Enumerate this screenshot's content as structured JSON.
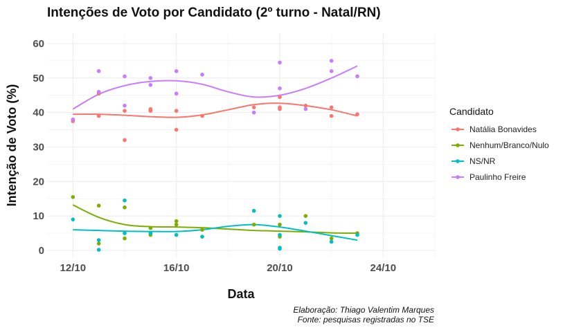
{
  "chart_data": {
    "type": "scatter",
    "title": "Intenções de Voto por Candidato (2º turno - Natal/RN)",
    "xlabel": "Data",
    "ylabel": "Intenção de Voto (%)",
    "x_ticks": [
      "12/10",
      "16/10",
      "20/10",
      "24/10"
    ],
    "y_ticks": [
      "0",
      "10",
      "20",
      "30",
      "40",
      "50",
      "60"
    ],
    "xlim": [
      "2020-10-11",
      "2020-10-26"
    ],
    "ylim": [
      -2,
      63
    ],
    "grid": true,
    "legend_title": "Candidato",
    "legend_position": "right",
    "caption": [
      "Elaboração: Thiago Valentim Marques",
      "Fonte: pesquisas registradas no TSE"
    ],
    "series": [
      {
        "name": "Natália Bonavides",
        "color": "#F8766D",
        "points": [
          [
            "2020-10-12",
            37.5
          ],
          [
            "2020-10-13",
            45.5
          ],
          [
            "2020-10-13",
            39.0
          ],
          [
            "2020-10-14",
            40.5
          ],
          [
            "2020-10-14",
            32.0
          ],
          [
            "2020-10-15",
            41.0
          ],
          [
            "2020-10-15",
            40.5
          ],
          [
            "2020-10-16",
            40.5
          ],
          [
            "2020-10-16",
            35.0
          ],
          [
            "2020-10-17",
            39.0
          ],
          [
            "2020-10-19",
            41.5
          ],
          [
            "2020-10-20",
            41.0
          ],
          [
            "2020-10-20",
            44.5
          ],
          [
            "2020-10-20",
            41.5
          ],
          [
            "2020-10-21",
            42.0
          ],
          [
            "2020-10-22",
            41.5
          ],
          [
            "2020-10-22",
            39.0
          ],
          [
            "2020-10-23",
            39.5
          ]
        ],
        "smooth": [
          [
            "2020-10-12",
            39.5
          ],
          [
            "2020-10-13",
            39.5
          ],
          [
            "2020-10-14",
            39.2
          ],
          [
            "2020-10-15",
            38.8
          ],
          [
            "2020-10-16",
            38.6
          ],
          [
            "2020-10-17",
            39.3
          ],
          [
            "2020-10-18",
            40.8
          ],
          [
            "2020-10-19",
            42.3
          ],
          [
            "2020-10-20",
            42.7
          ],
          [
            "2020-10-21",
            42.0
          ],
          [
            "2020-10-22",
            40.8
          ],
          [
            "2020-10-23",
            39.0
          ]
        ]
      },
      {
        "name": "Nenhum/Branco/Nulo",
        "color": "#7CAE00",
        "points": [
          [
            "2020-10-12",
            15.5
          ],
          [
            "2020-10-13",
            13.0
          ],
          [
            "2020-10-13",
            2.0
          ],
          [
            "2020-10-14",
            12.5
          ],
          [
            "2020-10-14",
            3.5
          ],
          [
            "2020-10-15",
            6.5
          ],
          [
            "2020-10-15",
            4.5
          ],
          [
            "2020-10-16",
            8.5
          ],
          [
            "2020-10-16",
            7.5
          ],
          [
            "2020-10-17",
            6.0
          ],
          [
            "2020-10-19",
            7.5
          ],
          [
            "2020-10-20",
            7.5
          ],
          [
            "2020-10-20",
            4.0
          ],
          [
            "2020-10-21",
            10.0
          ],
          [
            "2020-10-22",
            3.5
          ],
          [
            "2020-10-23",
            5.0
          ]
        ],
        "smooth": [
          [
            "2020-10-12",
            13.2
          ],
          [
            "2020-10-13",
            9.6
          ],
          [
            "2020-10-14",
            7.5
          ],
          [
            "2020-10-15",
            6.9
          ],
          [
            "2020-10-16",
            6.8
          ],
          [
            "2020-10-17",
            6.6
          ],
          [
            "2020-10-18",
            6.2
          ],
          [
            "2020-10-19",
            5.8
          ],
          [
            "2020-10-20",
            5.6
          ],
          [
            "2020-10-21",
            5.4
          ],
          [
            "2020-10-22",
            5.1
          ],
          [
            "2020-10-23",
            5.0
          ]
        ]
      },
      {
        "name": "NS/NR",
        "color": "#00BFC4",
        "points": [
          [
            "2020-10-12",
            9.0
          ],
          [
            "2020-10-13",
            3.0
          ],
          [
            "2020-10-13",
            0.2
          ],
          [
            "2020-10-14",
            14.5
          ],
          [
            "2020-10-14",
            5.0
          ],
          [
            "2020-10-15",
            5.0
          ],
          [
            "2020-10-16",
            4.5
          ],
          [
            "2020-10-17",
            4.0
          ],
          [
            "2020-10-19",
            11.5
          ],
          [
            "2020-10-20",
            10.0
          ],
          [
            "2020-10-20",
            4.5
          ],
          [
            "2020-10-20",
            0.8
          ],
          [
            "2020-10-20",
            0.5
          ],
          [
            "2020-10-21",
            8.0
          ],
          [
            "2020-10-22",
            2.5
          ],
          [
            "2020-10-23",
            4.5
          ]
        ],
        "smooth": [
          [
            "2020-10-12",
            6.0
          ],
          [
            "2020-10-13",
            5.8
          ],
          [
            "2020-10-14",
            5.6
          ],
          [
            "2020-10-15",
            5.5
          ],
          [
            "2020-10-16",
            5.5
          ],
          [
            "2020-10-17",
            6.0
          ],
          [
            "2020-10-18",
            7.0
          ],
          [
            "2020-10-19",
            7.5
          ],
          [
            "2020-10-20",
            6.8
          ],
          [
            "2020-10-21",
            5.6
          ],
          [
            "2020-10-22",
            4.3
          ],
          [
            "2020-10-23",
            3.0
          ]
        ]
      },
      {
        "name": "Paulinho Freire",
        "color": "#C77CFF",
        "points": [
          [
            "2020-10-12",
            38.0
          ],
          [
            "2020-10-13",
            52.0
          ],
          [
            "2020-10-13",
            46.0
          ],
          [
            "2020-10-14",
            50.5
          ],
          [
            "2020-10-14",
            42.0
          ],
          [
            "2020-10-15",
            50.0
          ],
          [
            "2020-10-15",
            48.0
          ],
          [
            "2020-10-16",
            52.0
          ],
          [
            "2020-10-16",
            45.5
          ],
          [
            "2020-10-17",
            51.0
          ],
          [
            "2020-10-19",
            40.0
          ],
          [
            "2020-10-20",
            54.5
          ],
          [
            "2020-10-20",
            47.0
          ],
          [
            "2020-10-21",
            41.0
          ],
          [
            "2020-10-22",
            55.0
          ],
          [
            "2020-10-22",
            52.0
          ],
          [
            "2020-10-23",
            50.5
          ]
        ],
        "smooth": [
          [
            "2020-10-12",
            41.0
          ],
          [
            "2020-10-13",
            45.3
          ],
          [
            "2020-10-14",
            47.8
          ],
          [
            "2020-10-15",
            49.0
          ],
          [
            "2020-10-16",
            49.2
          ],
          [
            "2020-10-17",
            48.2
          ],
          [
            "2020-10-18",
            46.0
          ],
          [
            "2020-10-19",
            44.5
          ],
          [
            "2020-10-20",
            45.0
          ],
          [
            "2020-10-21",
            47.0
          ],
          [
            "2020-10-22",
            50.0
          ],
          [
            "2020-10-23",
            53.5
          ]
        ]
      }
    ]
  }
}
